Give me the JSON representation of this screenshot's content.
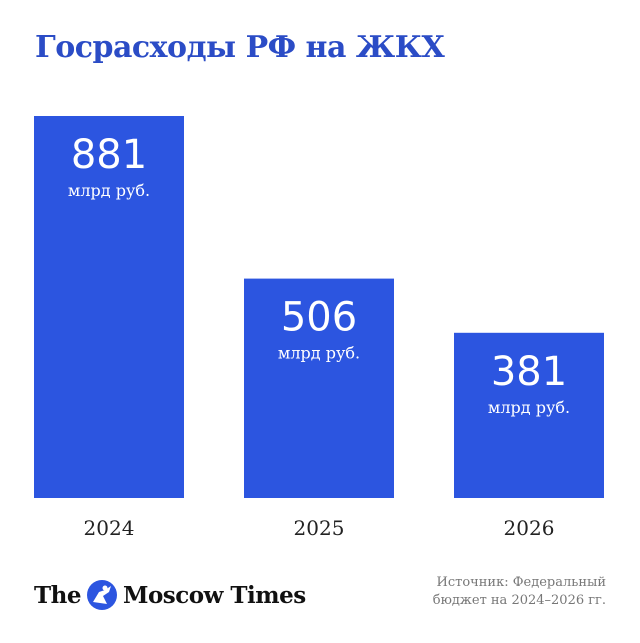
{
  "title": "Госрасходы РФ на ЖКХ",
  "chart_data": {
    "type": "bar",
    "categories": [
      "2024",
      "2025",
      "2026"
    ],
    "values": [
      881,
      506,
      381
    ],
    "unit": "млрд руб.",
    "color": "#2c55e0"
  },
  "logo": {
    "left": "The",
    "right": "Moscow Times",
    "emblem_icon": "st-george-icon"
  },
  "source": {
    "line1": "Источник: Федеральный",
    "line2": "бюджет на 2024–2026 гг."
  }
}
